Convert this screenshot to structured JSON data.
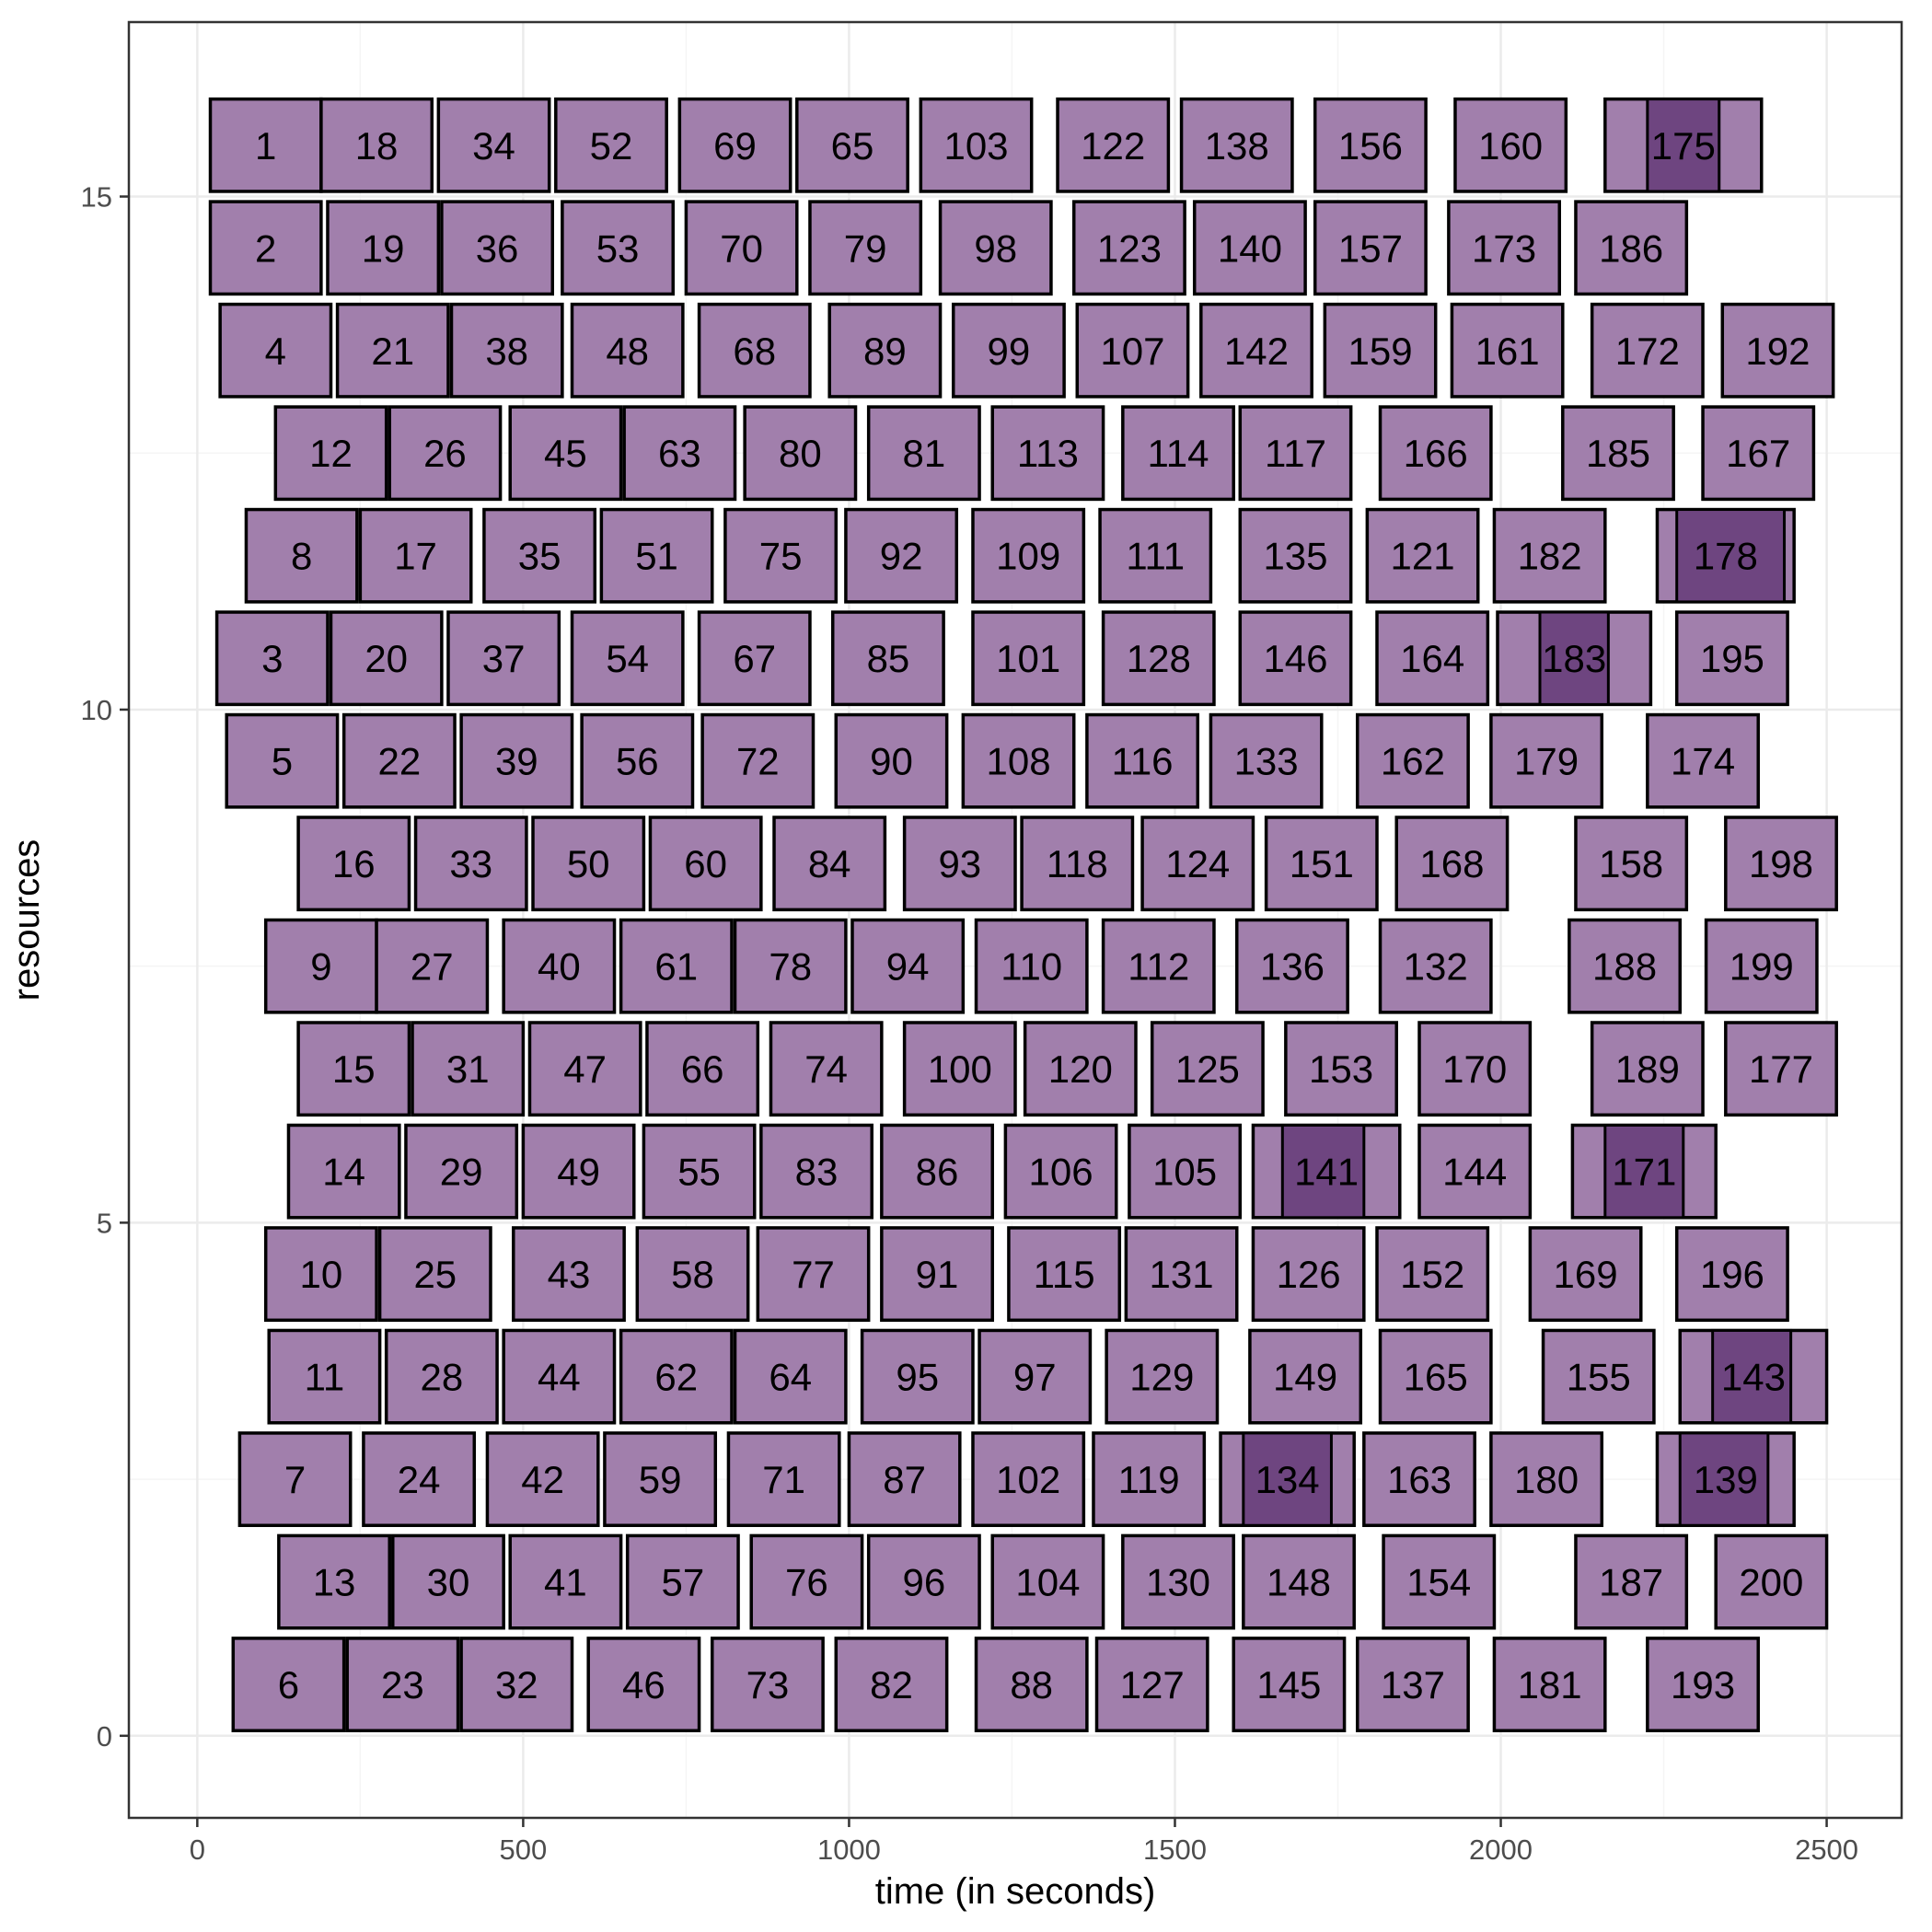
{
  "chart_data": {
    "type": "gantt",
    "xlabel": "time (in seconds)",
    "ylabel": "resources",
    "xlim": [
      -105,
      2615
    ],
    "ylim": [
      -0.8,
      16.7
    ],
    "x_ticks": [
      0,
      500,
      1000,
      1500,
      2000,
      2500
    ],
    "y_ticks": [
      0,
      5,
      10,
      15
    ],
    "grid": true,
    "legend": "none",
    "colors": {
      "bar_fill": "#a17fac",
      "overlap_fill": "#6e4580",
      "bar_stroke": "#000000",
      "grid_major": "#ebebeb",
      "grid_minor": "#f5f5f5",
      "panel_border": "#333333"
    },
    "tasks": [
      {
        "id": "1",
        "r": 15.5,
        "s": 20,
        "e": 190
      },
      {
        "id": "18",
        "r": 15.5,
        "s": 190,
        "e": 360
      },
      {
        "id": "34",
        "r": 15.5,
        "s": 370,
        "e": 540
      },
      {
        "id": "52",
        "r": 15.5,
        "s": 550,
        "e": 720
      },
      {
        "id": "69",
        "r": 15.5,
        "s": 740,
        "e": 910
      },
      {
        "id": "65",
        "r": 15.5,
        "s": 920,
        "e": 1090
      },
      {
        "id": "103",
        "r": 15.5,
        "s": 1110,
        "e": 1280
      },
      {
        "id": "122",
        "r": 15.5,
        "s": 1320,
        "e": 1490
      },
      {
        "id": "138",
        "r": 15.5,
        "s": 1510,
        "e": 1680
      },
      {
        "id": "156",
        "r": 15.5,
        "s": 1715,
        "e": 1885
      },
      {
        "id": "160",
        "r": 15.5,
        "s": 1930,
        "e": 2100
      },
      {
        "id": "175",
        "r": 15.5,
        "s": 2160,
        "e": 2400,
        "overlap": [
          2225,
          2335
        ]
      },
      {
        "id": "2",
        "r": 14.5,
        "s": 20,
        "e": 190
      },
      {
        "id": "19",
        "r": 14.5,
        "s": 200,
        "e": 370
      },
      {
        "id": "36",
        "r": 14.5,
        "s": 375,
        "e": 545
      },
      {
        "id": "53",
        "r": 14.5,
        "s": 560,
        "e": 730
      },
      {
        "id": "70",
        "r": 14.5,
        "s": 750,
        "e": 920
      },
      {
        "id": "79",
        "r": 14.5,
        "s": 940,
        "e": 1110
      },
      {
        "id": "98",
        "r": 14.5,
        "s": 1140,
        "e": 1310
      },
      {
        "id": "123",
        "r": 14.5,
        "s": 1345,
        "e": 1515
      },
      {
        "id": "140",
        "r": 14.5,
        "s": 1530,
        "e": 1700
      },
      {
        "id": "157",
        "r": 14.5,
        "s": 1715,
        "e": 1885
      },
      {
        "id": "173",
        "r": 14.5,
        "s": 1920,
        "e": 2090
      },
      {
        "id": "186",
        "r": 14.5,
        "s": 2115,
        "e": 2285
      },
      {
        "id": "4",
        "r": 13.5,
        "s": 35,
        "e": 205
      },
      {
        "id": "21",
        "r": 13.5,
        "s": 215,
        "e": 385
      },
      {
        "id": "38",
        "r": 13.5,
        "s": 390,
        "e": 560
      },
      {
        "id": "48",
        "r": 13.5,
        "s": 575,
        "e": 745
      },
      {
        "id": "68",
        "r": 13.5,
        "s": 770,
        "e": 940
      },
      {
        "id": "89",
        "r": 13.5,
        "s": 970,
        "e": 1140
      },
      {
        "id": "99",
        "r": 13.5,
        "s": 1160,
        "e": 1330
      },
      {
        "id": "107",
        "r": 13.5,
        "s": 1350,
        "e": 1520
      },
      {
        "id": "142",
        "r": 13.5,
        "s": 1540,
        "e": 1710
      },
      {
        "id": "159",
        "r": 13.5,
        "s": 1730,
        "e": 1900
      },
      {
        "id": "161",
        "r": 13.5,
        "s": 1925,
        "e": 2095
      },
      {
        "id": "172",
        "r": 13.5,
        "s": 2140,
        "e": 2310
      },
      {
        "id": "192",
        "r": 13.5,
        "s": 2340,
        "e": 2510
      },
      {
        "id": "12",
        "r": 12.5,
        "s": 120,
        "e": 290
      },
      {
        "id": "26",
        "r": 12.5,
        "s": 295,
        "e": 465
      },
      {
        "id": "45",
        "r": 12.5,
        "s": 480,
        "e": 650
      },
      {
        "id": "63",
        "r": 12.5,
        "s": 655,
        "e": 825
      },
      {
        "id": "80",
        "r": 12.5,
        "s": 840,
        "e": 1010
      },
      {
        "id": "81",
        "r": 12.5,
        "s": 1030,
        "e": 1200
      },
      {
        "id": "113",
        "r": 12.5,
        "s": 1220,
        "e": 1390
      },
      {
        "id": "114",
        "r": 12.5,
        "s": 1420,
        "e": 1590
      },
      {
        "id": "117",
        "r": 12.5,
        "s": 1600,
        "e": 1770
      },
      {
        "id": "166",
        "r": 12.5,
        "s": 1815,
        "e": 1985
      },
      {
        "id": "185",
        "r": 12.5,
        "s": 2095,
        "e": 2265
      },
      {
        "id": "167",
        "r": 12.5,
        "s": 2310,
        "e": 2480
      },
      {
        "id": "8",
        "r": 11.5,
        "s": 75,
        "e": 245
      },
      {
        "id": "17",
        "r": 11.5,
        "s": 250,
        "e": 420
      },
      {
        "id": "35",
        "r": 11.5,
        "s": 440,
        "e": 610
      },
      {
        "id": "51",
        "r": 11.5,
        "s": 620,
        "e": 790
      },
      {
        "id": "75",
        "r": 11.5,
        "s": 810,
        "e": 980
      },
      {
        "id": "92",
        "r": 11.5,
        "s": 995,
        "e": 1165
      },
      {
        "id": "109",
        "r": 11.5,
        "s": 1190,
        "e": 1360
      },
      {
        "id": "111",
        "r": 11.5,
        "s": 1385,
        "e": 1555
      },
      {
        "id": "135",
        "r": 11.5,
        "s": 1600,
        "e": 1770
      },
      {
        "id": "121",
        "r": 11.5,
        "s": 1795,
        "e": 1965
      },
      {
        "id": "182",
        "r": 11.5,
        "s": 1990,
        "e": 2160
      },
      {
        "id": "178",
        "r": 11.5,
        "s": 2240,
        "e": 2450,
        "overlap": [
          2270,
          2435
        ]
      },
      {
        "id": "3",
        "r": 10.5,
        "s": 30,
        "e": 200
      },
      {
        "id": "20",
        "r": 10.5,
        "s": 205,
        "e": 375
      },
      {
        "id": "37",
        "r": 10.5,
        "s": 385,
        "e": 555
      },
      {
        "id": "54",
        "r": 10.5,
        "s": 575,
        "e": 745
      },
      {
        "id": "67",
        "r": 10.5,
        "s": 770,
        "e": 940
      },
      {
        "id": "85",
        "r": 10.5,
        "s": 975,
        "e": 1145
      },
      {
        "id": "101",
        "r": 10.5,
        "s": 1190,
        "e": 1360
      },
      {
        "id": "128",
        "r": 10.5,
        "s": 1390,
        "e": 1560
      },
      {
        "id": "146",
        "r": 10.5,
        "s": 1600,
        "e": 1770
      },
      {
        "id": "164",
        "r": 10.5,
        "s": 1810,
        "e": 1980
      },
      {
        "id": "183",
        "r": 10.5,
        "s": 1995,
        "e": 2230,
        "overlap": [
          2060,
          2165
        ]
      },
      {
        "id": "195",
        "r": 10.5,
        "s": 2270,
        "e": 2440
      },
      {
        "id": "5",
        "r": 9.5,
        "s": 45,
        "e": 215
      },
      {
        "id": "22",
        "r": 9.5,
        "s": 225,
        "e": 395
      },
      {
        "id": "39",
        "r": 9.5,
        "s": 405,
        "e": 575
      },
      {
        "id": "56",
        "r": 9.5,
        "s": 590,
        "e": 760
      },
      {
        "id": "72",
        "r": 9.5,
        "s": 775,
        "e": 945
      },
      {
        "id": "90",
        "r": 9.5,
        "s": 980,
        "e": 1150
      },
      {
        "id": "108",
        "r": 9.5,
        "s": 1175,
        "e": 1345
      },
      {
        "id": "116",
        "r": 9.5,
        "s": 1365,
        "e": 1535
      },
      {
        "id": "133",
        "r": 9.5,
        "s": 1555,
        "e": 1725
      },
      {
        "id": "162",
        "r": 9.5,
        "s": 1780,
        "e": 1950
      },
      {
        "id": "179",
        "r": 9.5,
        "s": 1985,
        "e": 2155
      },
      {
        "id": "174",
        "r": 9.5,
        "s": 2225,
        "e": 2395
      },
      {
        "id": "16",
        "r": 8.5,
        "s": 155,
        "e": 325
      },
      {
        "id": "33",
        "r": 8.5,
        "s": 335,
        "e": 505
      },
      {
        "id": "50",
        "r": 8.5,
        "s": 515,
        "e": 685
      },
      {
        "id": "60",
        "r": 8.5,
        "s": 695,
        "e": 865
      },
      {
        "id": "84",
        "r": 8.5,
        "s": 885,
        "e": 1055
      },
      {
        "id": "93",
        "r": 8.5,
        "s": 1085,
        "e": 1255
      },
      {
        "id": "118",
        "r": 8.5,
        "s": 1265,
        "e": 1435
      },
      {
        "id": "124",
        "r": 8.5,
        "s": 1450,
        "e": 1620
      },
      {
        "id": "151",
        "r": 8.5,
        "s": 1640,
        "e": 1810
      },
      {
        "id": "168",
        "r": 8.5,
        "s": 1840,
        "e": 2010
      },
      {
        "id": "158",
        "r": 8.5,
        "s": 2115,
        "e": 2285
      },
      {
        "id": "198",
        "r": 8.5,
        "s": 2345,
        "e": 2515
      },
      {
        "id": "9",
        "r": 7.5,
        "s": 105,
        "e": 275
      },
      {
        "id": "27",
        "r": 7.5,
        "s": 275,
        "e": 445
      },
      {
        "id": "40",
        "r": 7.5,
        "s": 470,
        "e": 640
      },
      {
        "id": "61",
        "r": 7.5,
        "s": 650,
        "e": 820
      },
      {
        "id": "78",
        "r": 7.5,
        "s": 825,
        "e": 995
      },
      {
        "id": "94",
        "r": 7.5,
        "s": 1005,
        "e": 1175
      },
      {
        "id": "110",
        "r": 7.5,
        "s": 1195,
        "e": 1365
      },
      {
        "id": "112",
        "r": 7.5,
        "s": 1390,
        "e": 1560
      },
      {
        "id": "136",
        "r": 7.5,
        "s": 1595,
        "e": 1765
      },
      {
        "id": "132",
        "r": 7.5,
        "s": 1815,
        "e": 1985
      },
      {
        "id": "188",
        "r": 7.5,
        "s": 2105,
        "e": 2275
      },
      {
        "id": "199",
        "r": 7.5,
        "s": 2315,
        "e": 2485
      },
      {
        "id": "15",
        "r": 6.5,
        "s": 155,
        "e": 325
      },
      {
        "id": "31",
        "r": 6.5,
        "s": 330,
        "e": 500
      },
      {
        "id": "47",
        "r": 6.5,
        "s": 510,
        "e": 680
      },
      {
        "id": "66",
        "r": 6.5,
        "s": 690,
        "e": 860
      },
      {
        "id": "74",
        "r": 6.5,
        "s": 880,
        "e": 1050
      },
      {
        "id": "100",
        "r": 6.5,
        "s": 1085,
        "e": 1255
      },
      {
        "id": "120",
        "r": 6.5,
        "s": 1270,
        "e": 1440
      },
      {
        "id": "125",
        "r": 6.5,
        "s": 1465,
        "e": 1635
      },
      {
        "id": "153",
        "r": 6.5,
        "s": 1670,
        "e": 1840
      },
      {
        "id": "170",
        "r": 6.5,
        "s": 1875,
        "e": 2045
      },
      {
        "id": "189",
        "r": 6.5,
        "s": 2140,
        "e": 2310
      },
      {
        "id": "177",
        "r": 6.5,
        "s": 2345,
        "e": 2515
      },
      {
        "id": "14",
        "r": 5.5,
        "s": 140,
        "e": 310
      },
      {
        "id": "29",
        "r": 5.5,
        "s": 320,
        "e": 490
      },
      {
        "id": "49",
        "r": 5.5,
        "s": 500,
        "e": 670
      },
      {
        "id": "55",
        "r": 5.5,
        "s": 685,
        "e": 855
      },
      {
        "id": "83",
        "r": 5.5,
        "s": 865,
        "e": 1035
      },
      {
        "id": "86",
        "r": 5.5,
        "s": 1050,
        "e": 1220
      },
      {
        "id": "106",
        "r": 5.5,
        "s": 1240,
        "e": 1410
      },
      {
        "id": "105",
        "r": 5.5,
        "s": 1430,
        "e": 1600
      },
      {
        "id": "141",
        "r": 5.5,
        "s": 1620,
        "e": 1845,
        "overlap": [
          1665,
          1790
        ]
      },
      {
        "id": "144",
        "r": 5.5,
        "s": 1875,
        "e": 2045
      },
      {
        "id": "171",
        "r": 5.5,
        "s": 2110,
        "e": 2330,
        "overlap": [
          2160,
          2280
        ]
      },
      {
        "id": "10",
        "r": 4.5,
        "s": 105,
        "e": 275
      },
      {
        "id": "25",
        "r": 4.5,
        "s": 280,
        "e": 450
      },
      {
        "id": "43",
        "r": 4.5,
        "s": 485,
        "e": 655
      },
      {
        "id": "58",
        "r": 4.5,
        "s": 675,
        "e": 845
      },
      {
        "id": "77",
        "r": 4.5,
        "s": 860,
        "e": 1030
      },
      {
        "id": "91",
        "r": 4.5,
        "s": 1050,
        "e": 1220
      },
      {
        "id": "115",
        "r": 4.5,
        "s": 1245,
        "e": 1415
      },
      {
        "id": "131",
        "r": 4.5,
        "s": 1425,
        "e": 1595
      },
      {
        "id": "126",
        "r": 4.5,
        "s": 1620,
        "e": 1790
      },
      {
        "id": "152",
        "r": 4.5,
        "s": 1810,
        "e": 1980
      },
      {
        "id": "169",
        "r": 4.5,
        "s": 2045,
        "e": 2215
      },
      {
        "id": "196",
        "r": 4.5,
        "s": 2270,
        "e": 2440
      },
      {
        "id": "11",
        "r": 3.5,
        "s": 110,
        "e": 280
      },
      {
        "id": "28",
        "r": 3.5,
        "s": 290,
        "e": 460
      },
      {
        "id": "44",
        "r": 3.5,
        "s": 470,
        "e": 640
      },
      {
        "id": "62",
        "r": 3.5,
        "s": 650,
        "e": 820
      },
      {
        "id": "64",
        "r": 3.5,
        "s": 825,
        "e": 995
      },
      {
        "id": "95",
        "r": 3.5,
        "s": 1020,
        "e": 1190
      },
      {
        "id": "97",
        "r": 3.5,
        "s": 1200,
        "e": 1370
      },
      {
        "id": "129",
        "r": 3.5,
        "s": 1395,
        "e": 1565
      },
      {
        "id": "149",
        "r": 3.5,
        "s": 1615,
        "e": 1785
      },
      {
        "id": "165",
        "r": 3.5,
        "s": 1815,
        "e": 1985
      },
      {
        "id": "155",
        "r": 3.5,
        "s": 2065,
        "e": 2235
      },
      {
        "id": "143",
        "r": 3.5,
        "s": 2275,
        "e": 2500,
        "overlap": [
          2325,
          2445
        ]
      },
      {
        "id": "7",
        "r": 2.5,
        "s": 65,
        "e": 235
      },
      {
        "id": "24",
        "r": 2.5,
        "s": 255,
        "e": 425
      },
      {
        "id": "42",
        "r": 2.5,
        "s": 445,
        "e": 615
      },
      {
        "id": "59",
        "r": 2.5,
        "s": 625,
        "e": 795
      },
      {
        "id": "71",
        "r": 2.5,
        "s": 815,
        "e": 985
      },
      {
        "id": "87",
        "r": 2.5,
        "s": 1000,
        "e": 1170
      },
      {
        "id": "102",
        "r": 2.5,
        "s": 1190,
        "e": 1360
      },
      {
        "id": "119",
        "r": 2.5,
        "s": 1375,
        "e": 1545
      },
      {
        "id": "134",
        "r": 2.5,
        "s": 1570,
        "e": 1775,
        "overlap": [
          1605,
          1740
        ]
      },
      {
        "id": "163",
        "r": 2.5,
        "s": 1790,
        "e": 1960
      },
      {
        "id": "180",
        "r": 2.5,
        "s": 1985,
        "e": 2155
      },
      {
        "id": "139",
        "r": 2.5,
        "s": 2240,
        "e": 2450,
        "overlap": [
          2275,
          2410
        ]
      },
      {
        "id": "13",
        "r": 1.5,
        "s": 125,
        "e": 295
      },
      {
        "id": "30",
        "r": 1.5,
        "s": 300,
        "e": 470
      },
      {
        "id": "41",
        "r": 1.5,
        "s": 480,
        "e": 650
      },
      {
        "id": "57",
        "r": 1.5,
        "s": 660,
        "e": 830
      },
      {
        "id": "76",
        "r": 1.5,
        "s": 850,
        "e": 1020
      },
      {
        "id": "96",
        "r": 1.5,
        "s": 1030,
        "e": 1200
      },
      {
        "id": "104",
        "r": 1.5,
        "s": 1220,
        "e": 1390
      },
      {
        "id": "130",
        "r": 1.5,
        "s": 1420,
        "e": 1590
      },
      {
        "id": "148",
        "r": 1.5,
        "s": 1605,
        "e": 1775
      },
      {
        "id": "154",
        "r": 1.5,
        "s": 1820,
        "e": 1990
      },
      {
        "id": "187",
        "r": 1.5,
        "s": 2115,
        "e": 2285
      },
      {
        "id": "200",
        "r": 1.5,
        "s": 2330,
        "e": 2500
      },
      {
        "id": "6",
        "r": 0.5,
        "s": 55,
        "e": 225
      },
      {
        "id": "23",
        "r": 0.5,
        "s": 230,
        "e": 400
      },
      {
        "id": "32",
        "r": 0.5,
        "s": 405,
        "e": 575
      },
      {
        "id": "46",
        "r": 0.5,
        "s": 600,
        "e": 770
      },
      {
        "id": "73",
        "r": 0.5,
        "s": 790,
        "e": 960
      },
      {
        "id": "82",
        "r": 0.5,
        "s": 980,
        "e": 1150
      },
      {
        "id": "88",
        "r": 0.5,
        "s": 1195,
        "e": 1365
      },
      {
        "id": "127",
        "r": 0.5,
        "s": 1380,
        "e": 1550
      },
      {
        "id": "145",
        "r": 0.5,
        "s": 1590,
        "e": 1760
      },
      {
        "id": "137",
        "r": 0.5,
        "s": 1780,
        "e": 1950
      },
      {
        "id": "181",
        "r": 0.5,
        "s": 1990,
        "e": 2160
      },
      {
        "id": "193",
        "r": 0.5,
        "s": 2225,
        "e": 2395
      }
    ]
  }
}
